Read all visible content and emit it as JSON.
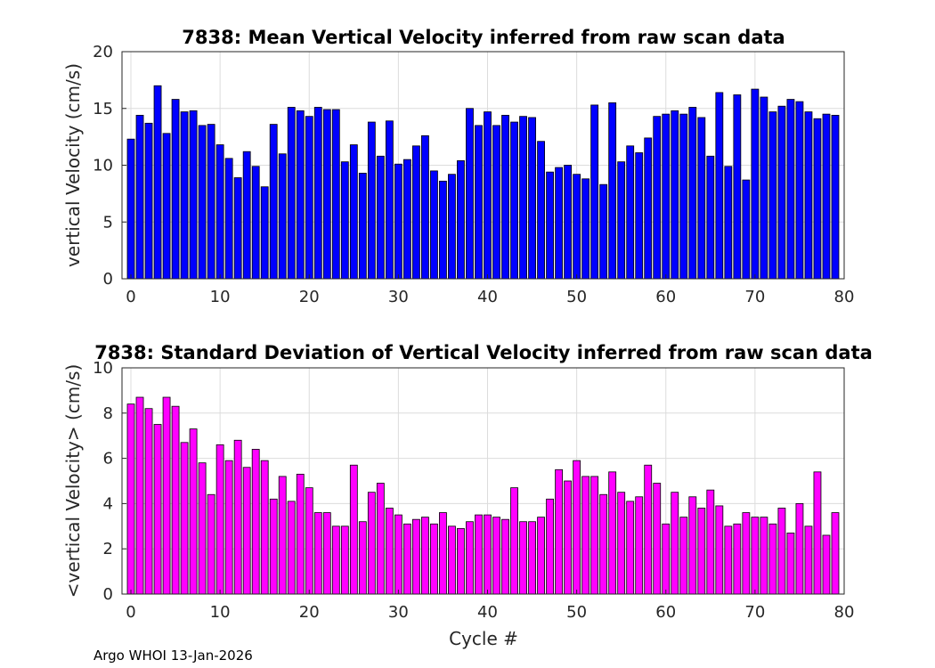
{
  "footer": "Argo WHOI 13-Jan-2026",
  "chart_data": [
    {
      "type": "bar",
      "title": "7838: Mean Vertical Velocity inferred from raw scan data",
      "xlabel": "",
      "ylabel": "vertical Velocity (cm/s)",
      "xlim": [
        -1,
        80
      ],
      "ylim": [
        0,
        20
      ],
      "xticks": [
        "0",
        "10",
        "20",
        "30",
        "40",
        "50",
        "60",
        "70",
        "80"
      ],
      "yticks": [
        "0",
        "5",
        "10",
        "15",
        "20"
      ],
      "grid": true,
      "bar_color": "#0000ff",
      "x": [
        0,
        1,
        2,
        3,
        4,
        5,
        6,
        7,
        8,
        9,
        10,
        11,
        12,
        13,
        14,
        15,
        16,
        17,
        18,
        19,
        20,
        21,
        22,
        23,
        24,
        25,
        26,
        27,
        28,
        29,
        30,
        31,
        32,
        33,
        34,
        35,
        36,
        37,
        38,
        39,
        40,
        41,
        42,
        43,
        44,
        45,
        46,
        47,
        48,
        49,
        50,
        51,
        52,
        53,
        54,
        55,
        56,
        57,
        58,
        59,
        60,
        61,
        62,
        63,
        64,
        65,
        66,
        67,
        68,
        69,
        70,
        71,
        72,
        73,
        74,
        75,
        76,
        77,
        78,
        79
      ],
      "values": [
        12.3,
        14.4,
        13.7,
        17.0,
        12.8,
        15.8,
        14.7,
        14.8,
        13.5,
        13.6,
        11.8,
        10.6,
        8.9,
        11.2,
        9.9,
        8.1,
        13.6,
        11.0,
        15.1,
        14.8,
        14.3,
        15.1,
        14.9,
        14.9,
        10.3,
        11.8,
        9.3,
        13.8,
        10.8,
        13.9,
        10.1,
        10.5,
        11.7,
        12.6,
        9.5,
        8.6,
        9.2,
        10.4,
        15.0,
        13.5,
        14.7,
        13.5,
        14.4,
        13.8,
        14.3,
        14.2,
        12.1,
        9.4,
        9.8,
        10.0,
        9.2,
        8.8,
        15.3,
        8.3,
        15.5,
        10.3,
        11.7,
        11.1,
        12.4,
        14.3,
        14.5,
        14.8,
        14.5,
        15.1,
        14.2,
        10.8,
        16.4,
        9.9,
        16.2,
        8.7,
        16.7,
        16.0,
        14.7,
        15.2,
        15.8,
        15.6,
        14.7,
        14.1,
        14.5,
        14.4
      ]
    },
    {
      "type": "bar",
      "title": "7838: Standard Deviation of Vertical Velocity inferred from raw scan data",
      "xlabel": "Cycle #",
      "ylabel": "<vertical Velocity> (cm/s)",
      "xlim": [
        -1,
        80
      ],
      "ylim": [
        0,
        10
      ],
      "xticks": [
        "0",
        "10",
        "20",
        "30",
        "40",
        "50",
        "60",
        "70",
        "80"
      ],
      "yticks": [
        "0",
        "2",
        "4",
        "6",
        "8",
        "10"
      ],
      "grid": true,
      "bar_color": "#ff00ff",
      "x": [
        0,
        1,
        2,
        3,
        4,
        5,
        6,
        7,
        8,
        9,
        10,
        11,
        12,
        13,
        14,
        15,
        16,
        17,
        18,
        19,
        20,
        21,
        22,
        23,
        24,
        25,
        26,
        27,
        28,
        29,
        30,
        31,
        32,
        33,
        34,
        35,
        36,
        37,
        38,
        39,
        40,
        41,
        42,
        43,
        44,
        45,
        46,
        47,
        48,
        49,
        50,
        51,
        52,
        53,
        54,
        55,
        56,
        57,
        58,
        59,
        60,
        61,
        62,
        63,
        64,
        65,
        66,
        67,
        68,
        69,
        70,
        71,
        72,
        73,
        74,
        75,
        76,
        77,
        78,
        79
      ],
      "values": [
        8.4,
        8.7,
        8.2,
        7.5,
        8.7,
        8.3,
        6.7,
        7.3,
        5.8,
        4.4,
        6.6,
        5.9,
        6.8,
        5.6,
        6.4,
        5.9,
        4.2,
        5.2,
        4.1,
        5.3,
        4.7,
        3.6,
        3.6,
        3.0,
        3.0,
        5.7,
        3.2,
        4.5,
        4.9,
        3.8,
        3.5,
        3.1,
        3.3,
        3.4,
        3.1,
        3.6,
        3.0,
        2.9,
        3.2,
        3.5,
        3.5,
        3.4,
        3.3,
        4.7,
        3.2,
        3.2,
        3.4,
        4.2,
        5.5,
        5.0,
        5.9,
        5.2,
        5.2,
        4.4,
        5.4,
        4.5,
        4.1,
        4.3,
        5.7,
        4.9,
        3.1,
        4.5,
        3.4,
        4.3,
        3.8,
        4.6,
        3.9,
        3.0,
        3.1,
        3.6,
        3.4,
        3.4,
        3.1,
        3.8,
        2.7,
        4.0,
        3.0,
        5.4,
        2.6,
        3.6
      ]
    }
  ]
}
